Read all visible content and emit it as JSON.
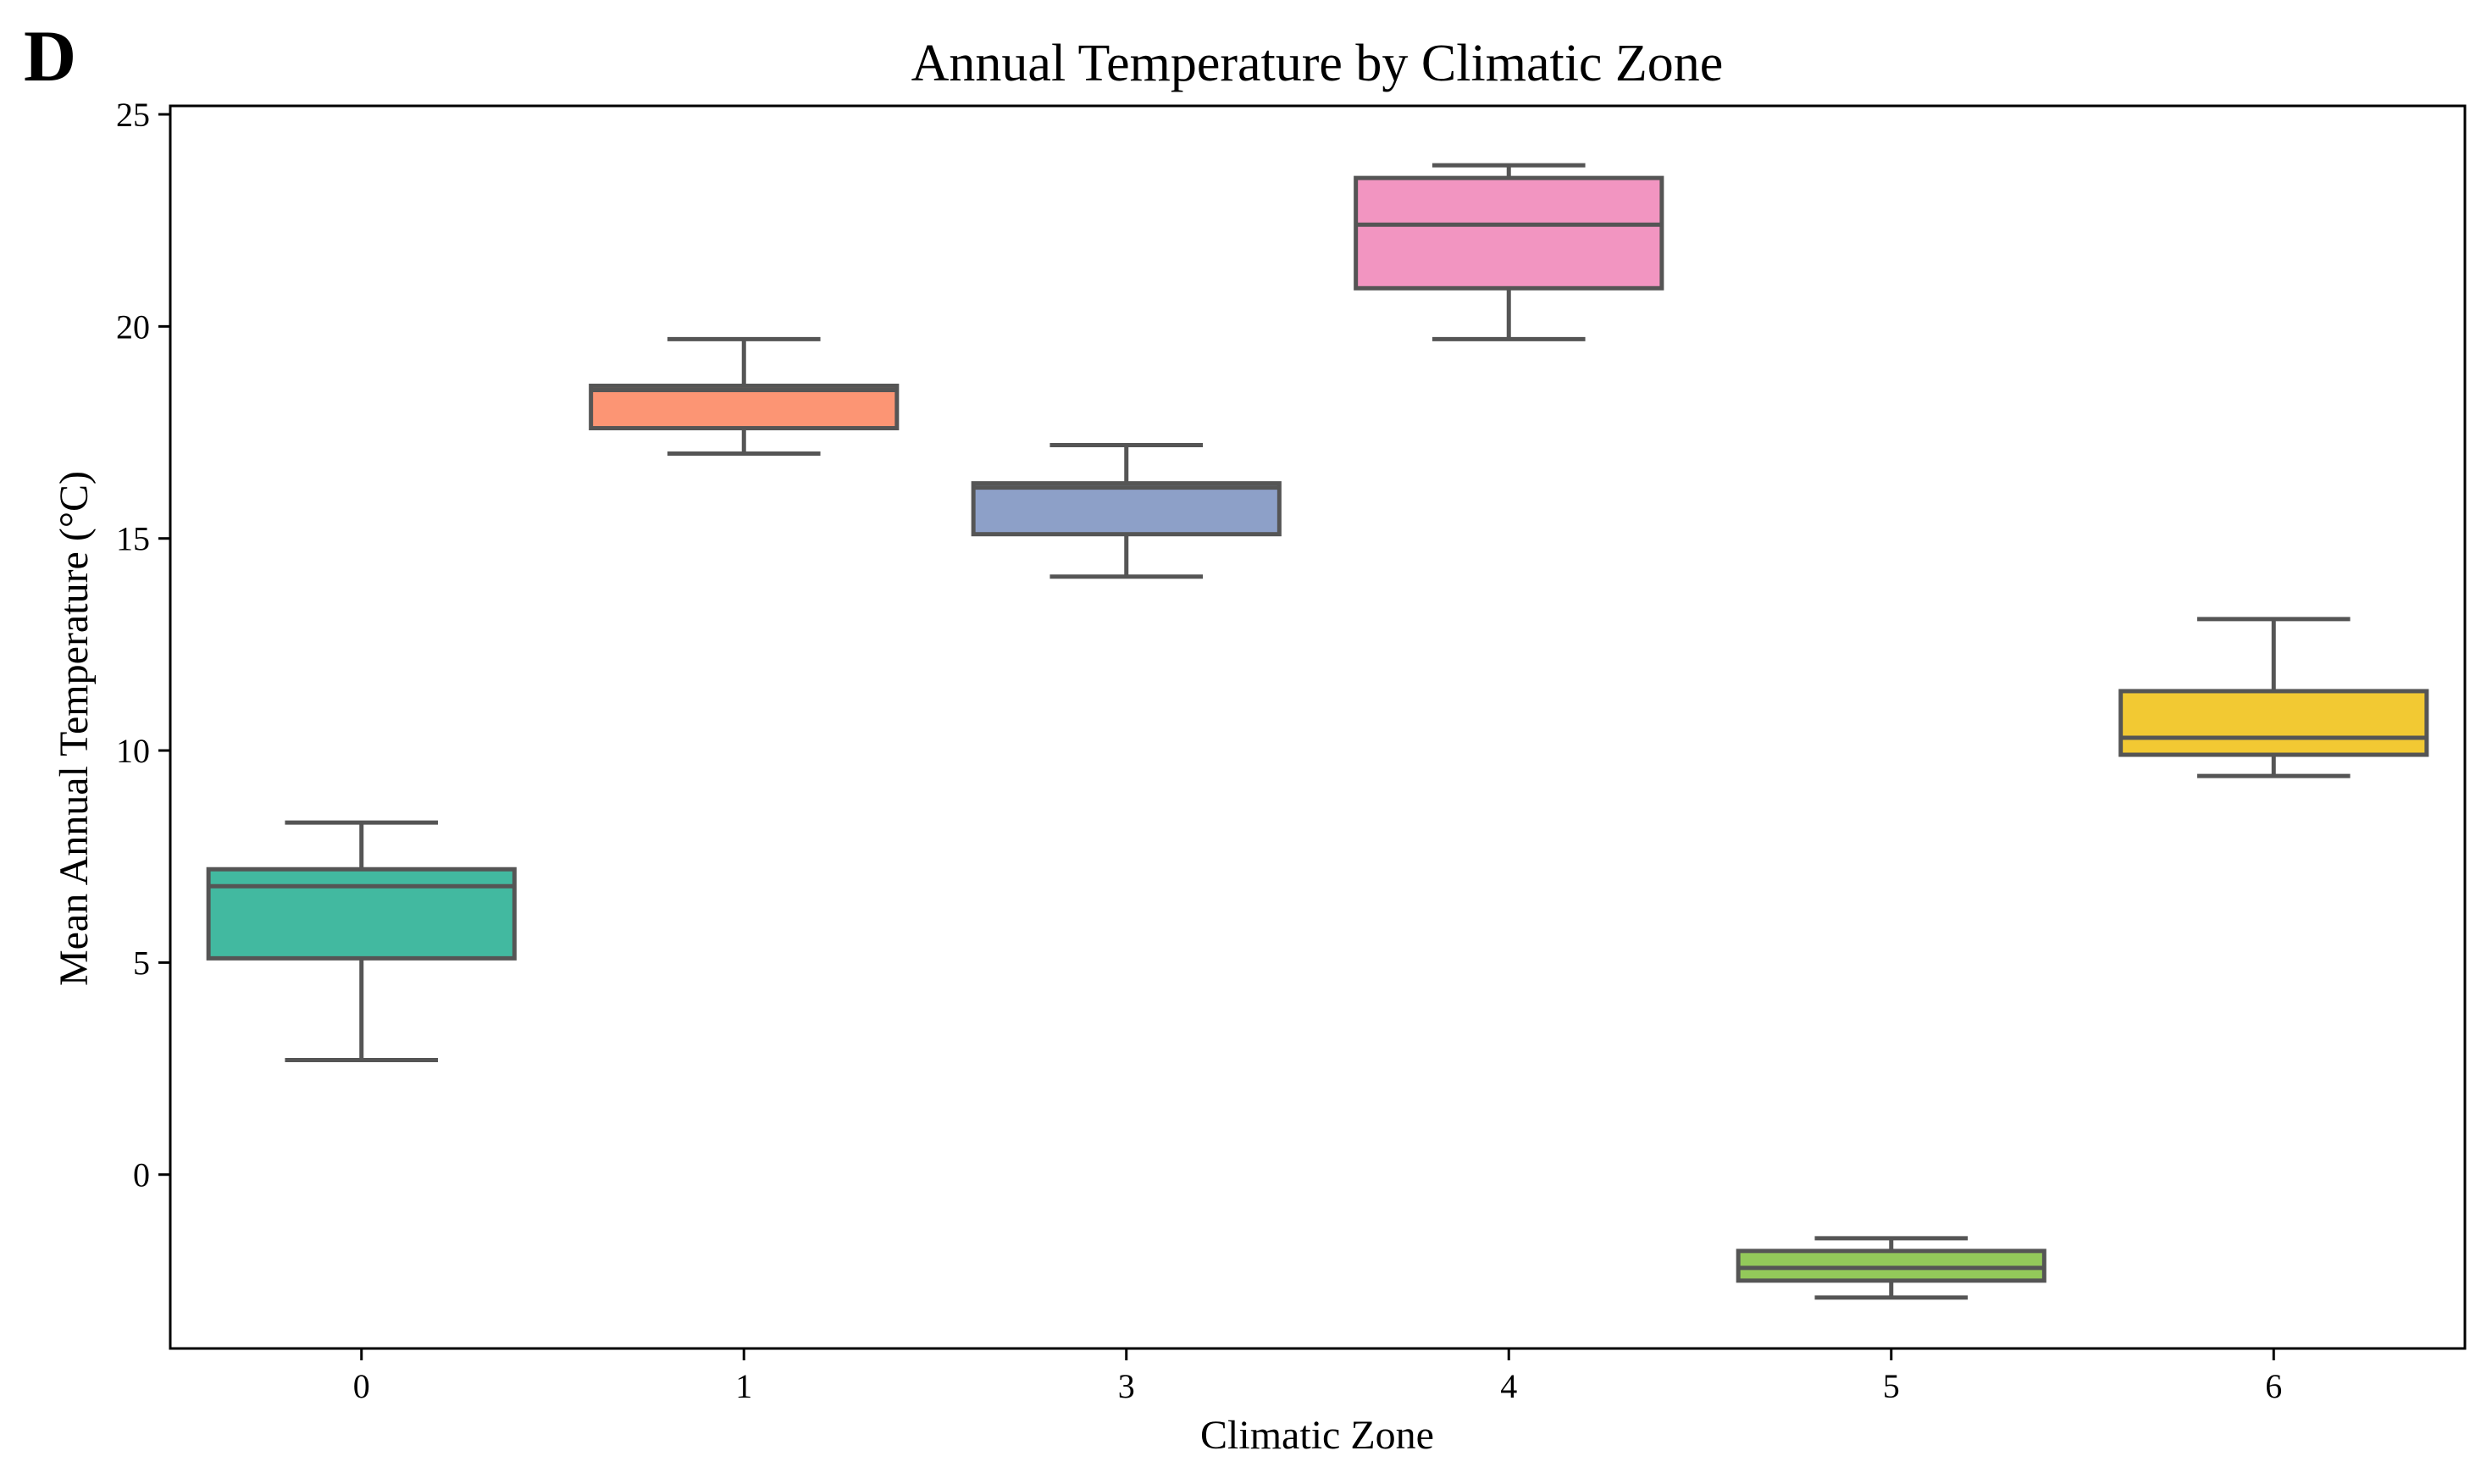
{
  "panel_label": "D",
  "chart_data": {
    "type": "box",
    "title": "Annual Temperature by Climatic Zone",
    "xlabel": "Climatic Zone",
    "ylabel": "Mean Annual Temperature (°C)",
    "ylim": [
      -4.1,
      25.2
    ],
    "yticks": [
      0,
      5,
      10,
      15,
      20,
      25
    ],
    "grid": false,
    "categories": [
      "0",
      "1",
      "3",
      "4",
      "5",
      "6"
    ],
    "boxes": [
      {
        "category": "0",
        "whisker_low": 2.7,
        "q1": 5.1,
        "median": 6.8,
        "q3": 7.2,
        "whisker_high": 8.3,
        "color": "#42b9a0"
      },
      {
        "category": "1",
        "whisker_low": 17.0,
        "q1": 17.6,
        "median": 18.5,
        "q3": 18.6,
        "whisker_high": 19.7,
        "color": "#fc9574"
      },
      {
        "category": "3",
        "whisker_low": 14.1,
        "q1": 15.1,
        "median": 16.2,
        "q3": 16.3,
        "whisker_high": 17.2,
        "color": "#8da0c8"
      },
      {
        "category": "4",
        "whisker_low": 19.7,
        "q1": 20.9,
        "median": 22.4,
        "q3": 23.5,
        "whisker_high": 23.8,
        "color": "#f295c1"
      },
      {
        "category": "5",
        "whisker_low": -2.9,
        "q1": -2.5,
        "median": -2.2,
        "q3": -1.8,
        "whisker_high": -1.5,
        "color": "#93c95a"
      },
      {
        "category": "6",
        "whisker_low": 9.4,
        "q1": 9.9,
        "median": 10.3,
        "q3": 11.4,
        "whisker_high": 13.1,
        "color": "#f2c933"
      }
    ],
    "line_color": "#555555"
  }
}
